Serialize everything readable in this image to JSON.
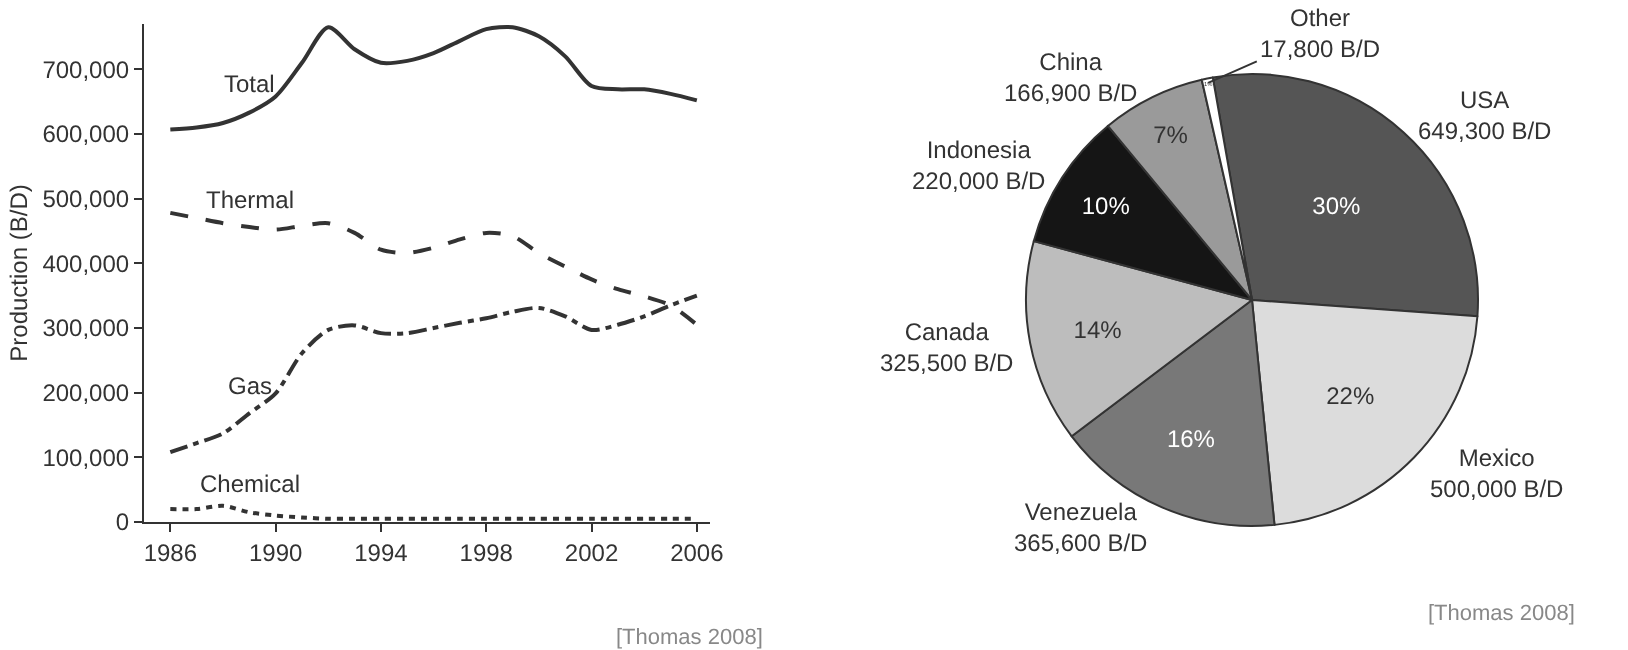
{
  "chart_data": [
    {
      "type": "line",
      "ylabel": "Production (B/D)",
      "x": [
        1986,
        1987,
        1988,
        1989,
        1990,
        1991,
        1992,
        1993,
        1994,
        1995,
        1996,
        1997,
        1998,
        1999,
        2000,
        2001,
        2002,
        2003,
        2004,
        2005,
        2006
      ],
      "series": [
        {
          "name": "Total",
          "color": "#333333",
          "line_style": "solid",
          "values": [
            607000,
            610000,
            617000,
            633000,
            658000,
            710000,
            765000,
            731000,
            710000,
            713000,
            725000,
            744000,
            762000,
            765000,
            751000,
            720000,
            674000,
            669000,
            669000,
            662000,
            652000
          ]
        },
        {
          "name": "Thermal",
          "color": "#333333",
          "line_style": "dashed",
          "values": [
            478000,
            470000,
            462000,
            456000,
            452000,
            458000,
            462000,
            447000,
            421000,
            416000,
            424000,
            437000,
            447000,
            442000,
            416000,
            395000,
            375000,
            360000,
            349000,
            335000,
            305000
          ]
        },
        {
          "name": "Gas",
          "color": "#333333",
          "line_style": "dashdot",
          "values": [
            108000,
            122000,
            137000,
            168000,
            199000,
            261000,
            297000,
            304000,
            292000,
            292000,
            300000,
            308000,
            315000,
            325000,
            331000,
            318000,
            297000,
            305000,
            318000,
            335000,
            350000
          ]
        },
        {
          "name": "Chemical",
          "color": "#333333",
          "line_style": "dotted",
          "values": [
            20000,
            20000,
            25000,
            15000,
            10000,
            7000,
            5000,
            5000,
            5000,
            5000,
            5000,
            5000,
            5000,
            5000,
            5000,
            5000,
            5000,
            5000,
            5000,
            5000,
            5000
          ]
        }
      ],
      "xlim": [
        1985,
        2006.5
      ],
      "ylim": [
        0,
        770000
      ],
      "xticks": [
        1986,
        1990,
        1994,
        1998,
        2002,
        2006
      ],
      "yticks": [
        0,
        {
          "value": 100000,
          "label": "100,000"
        },
        {
          "value": 200000,
          "label": "200,000"
        },
        {
          "value": 300000,
          "label": "300,000"
        },
        {
          "value": 400000,
          "label": "400,000"
        },
        {
          "value": 500000,
          "label": "500,000"
        },
        {
          "value": 600000,
          "label": "600,000"
        },
        {
          "value": 700000,
          "label": "700,000"
        }
      ],
      "grid": false,
      "legend": false,
      "annotations": [
        "[Thomas 2008]"
      ]
    },
    {
      "type": "pie",
      "categories": [
        "USA",
        "Mexico",
        "Venezuela",
        "Canada",
        "Indonesia",
        "China",
        "Other"
      ],
      "values": [
        649300,
        500000,
        365600,
        325500,
        220000,
        166900,
        17800
      ],
      "colors": [
        "#555555",
        "#dcdcdc",
        "#787878",
        "#bdbdbd",
        "#151515",
        "#9a9a9a",
        "#ffffff"
      ],
      "value_labels": [
        "649,300 B/D",
        "500,000 B/D",
        "365,600 B/D",
        "325,500 B/D",
        "220,000 B/D",
        "166,900 B/D",
        "17,800 B/D"
      ],
      "annotations": [
        {
          "text": "30%",
          "x": "USA"
        },
        {
          "text": "22%",
          "x": "Mexico"
        },
        {
          "text": "16%",
          "x": "Venezuela"
        },
        {
          "text": "14%",
          "x": "Canada"
        },
        {
          "text": "10%",
          "x": "Indonesia"
        },
        {
          "text": "7%",
          "x": "China"
        },
        {
          "text": "1%",
          "x": "Other"
        },
        "[Thomas 2008]"
      ]
    }
  ]
}
